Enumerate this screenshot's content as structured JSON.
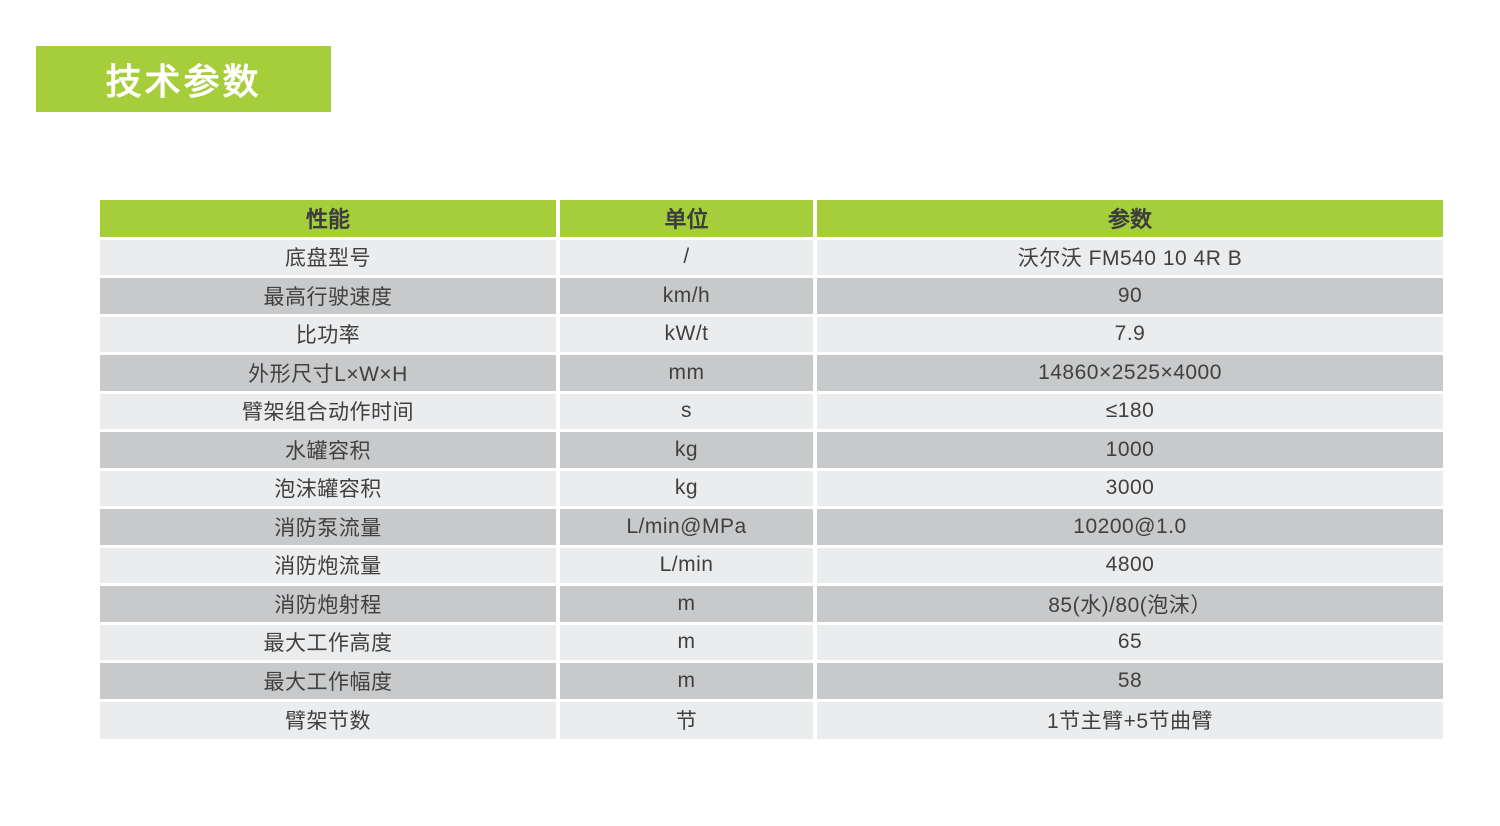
{
  "colors": {
    "accent_green": "#a6cd3a",
    "row_light": "#ebeced",
    "row_dark": "#c8c9ca",
    "text_dark": "#404040",
    "banner_text": "#ffffff"
  },
  "title_banner": {
    "label": "技术参数"
  },
  "table": {
    "headers": [
      "性能",
      "单位",
      "参数"
    ],
    "rows": [
      {
        "performance": "底盘型号",
        "unit": "/",
        "value": "沃尔沃 FM540 10 4R B"
      },
      {
        "performance": "最高行驶速度",
        "unit": "km/h",
        "value": "90"
      },
      {
        "performance": "比功率",
        "unit": "kW/t",
        "value": "7.9"
      },
      {
        "performance": "外形尺寸L×W×H",
        "unit": "mm",
        "value": "14860×2525×4000"
      },
      {
        "performance": "臂架组合动作时间",
        "unit": "s",
        "value": "≤180"
      },
      {
        "performance": "水罐容积",
        "unit": "kg",
        "value": "1000"
      },
      {
        "performance": "泡沫罐容积",
        "unit": "kg",
        "value": "3000"
      },
      {
        "performance": "消防泵流量",
        "unit": "L/min@MPa",
        "value": "10200@1.0"
      },
      {
        "performance": "消防炮流量",
        "unit": "L/min",
        "value": "4800"
      },
      {
        "performance": "消防炮射程",
        "unit": "m",
        "value": "85(水)/80(泡沫）"
      },
      {
        "performance": "最大工作高度",
        "unit": "m",
        "value": "65"
      },
      {
        "performance": "最大工作幅度",
        "unit": "m",
        "value": "58"
      },
      {
        "performance": "臂架节数",
        "unit": "节",
        "value": "1节主臂+5节曲臂"
      }
    ]
  }
}
